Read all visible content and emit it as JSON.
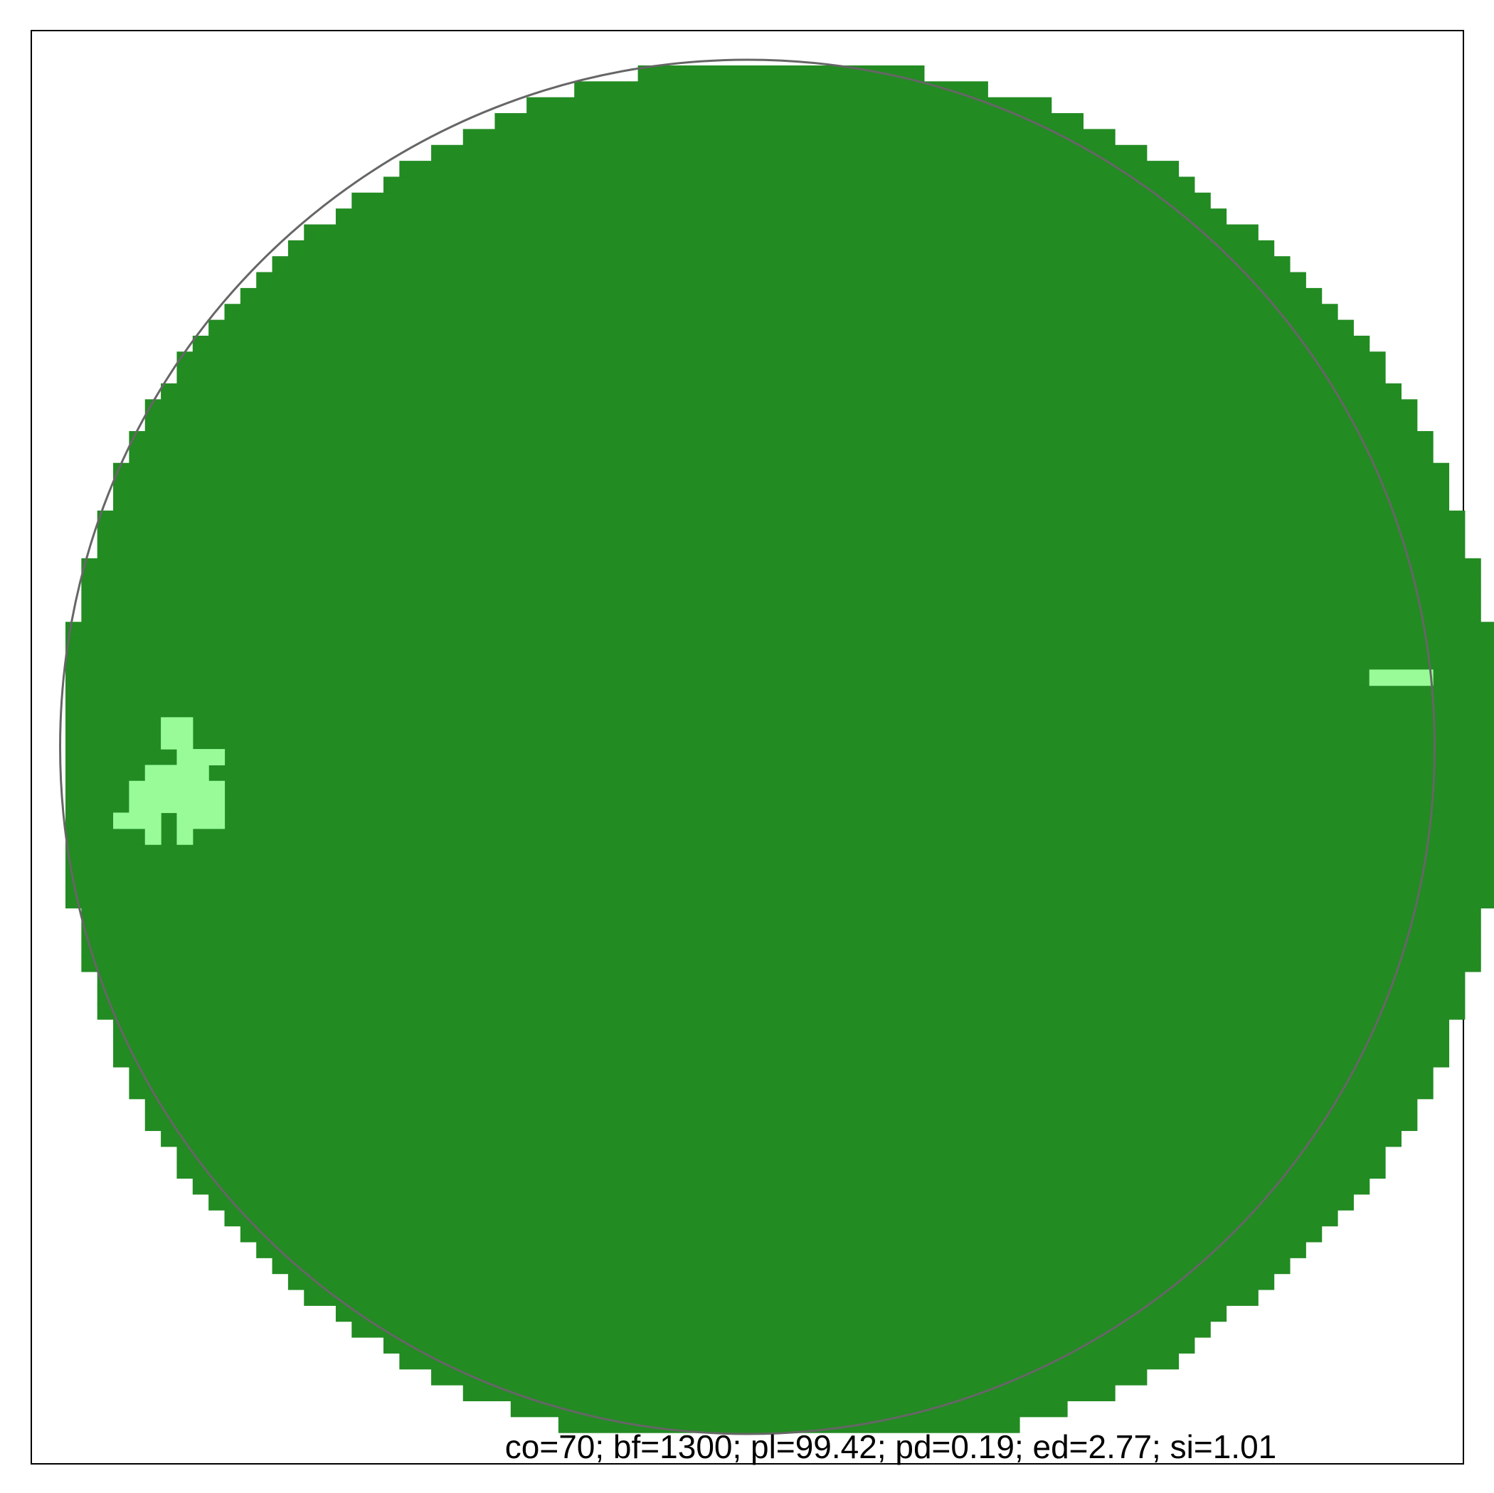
{
  "colors": {
    "background": "#ffffff",
    "frame": "#000000",
    "circle_outline": "#666666",
    "forest": "#228b22",
    "clearing": "#98fb98"
  },
  "chart_data": {
    "type": "heatmap",
    "title": "",
    "xlabel": "",
    "ylabel": "",
    "grid": false,
    "legend": "none",
    "caption": "co=70; bf=1300; pl=99.42; pd=0.19; ed=2.77; si=1.01",
    "metrics": {
      "co": 70,
      "bf": 1300,
      "pl": 99.42,
      "pd": 0.19,
      "ed": 2.77,
      "si": 1.01
    },
    "grid_size": 86,
    "classes": [
      {
        "value": 1,
        "color": "#228b22"
      },
      {
        "value": 0,
        "color": "#98fb98"
      }
    ],
    "row_spans": [
      [
        0,
        36,
        53
      ],
      [
        1,
        32,
        57
      ],
      [
        2,
        29,
        61
      ],
      [
        3,
        27,
        63
      ],
      [
        4,
        25,
        65
      ],
      [
        5,
        23,
        67
      ],
      [
        6,
        21,
        69
      ],
      [
        7,
        20,
        70
      ],
      [
        8,
        18,
        71
      ],
      [
        9,
        17,
        72
      ],
      [
        10,
        15,
        74
      ],
      [
        11,
        14,
        75
      ],
      [
        12,
        13,
        76
      ],
      [
        13,
        12,
        77
      ],
      [
        14,
        11,
        78
      ],
      [
        15,
        10,
        79
      ],
      [
        16,
        9,
        80
      ],
      [
        17,
        8,
        81
      ],
      [
        18,
        7,
        82
      ],
      [
        19,
        7,
        82
      ],
      [
        20,
        6,
        83
      ],
      [
        21,
        5,
        84
      ],
      [
        22,
        5,
        84
      ],
      [
        23,
        4,
        85
      ],
      [
        24,
        4,
        85
      ],
      [
        25,
        3,
        86
      ],
      [
        26,
        3,
        86
      ],
      [
        27,
        3,
        86
      ],
      [
        28,
        2,
        87
      ],
      [
        29,
        2,
        87
      ],
      [
        30,
        2,
        87
      ],
      [
        31,
        1,
        88
      ],
      [
        32,
        1,
        88
      ],
      [
        33,
        1,
        88
      ],
      [
        34,
        1,
        88
      ],
      [
        35,
        0,
        89
      ],
      [
        36,
        0,
        89
      ],
      [
        37,
        0,
        89
      ],
      [
        38,
        0,
        89
      ],
      [
        39,
        0,
        89
      ],
      [
        40,
        0,
        89
      ],
      [
        41,
        0,
        89
      ],
      [
        42,
        0,
        89
      ],
      [
        43,
        0,
        89
      ],
      [
        44,
        0,
        89
      ],
      [
        45,
        0,
        89
      ],
      [
        46,
        0,
        89
      ],
      [
        47,
        0,
        89
      ],
      [
        48,
        0,
        89
      ],
      [
        49,
        0,
        89
      ],
      [
        50,
        0,
        89
      ],
      [
        51,
        0,
        89
      ],
      [
        52,
        0,
        89
      ],
      [
        53,
        1,
        88
      ],
      [
        54,
        1,
        88
      ],
      [
        55,
        1,
        88
      ],
      [
        56,
        1,
        88
      ],
      [
        57,
        2,
        87
      ],
      [
        58,
        2,
        87
      ],
      [
        59,
        2,
        87
      ],
      [
        60,
        3,
        86
      ],
      [
        61,
        3,
        86
      ],
      [
        62,
        3,
        86
      ],
      [
        63,
        4,
        85
      ],
      [
        64,
        4,
        85
      ],
      [
        65,
        5,
        84
      ],
      [
        66,
        5,
        84
      ],
      [
        67,
        6,
        83
      ],
      [
        68,
        7,
        82
      ],
      [
        69,
        7,
        82
      ],
      [
        70,
        8,
        81
      ],
      [
        71,
        9,
        80
      ],
      [
        72,
        10,
        79
      ],
      [
        73,
        11,
        78
      ],
      [
        74,
        12,
        77
      ],
      [
        75,
        13,
        76
      ],
      [
        76,
        14,
        75
      ],
      [
        77,
        15,
        74
      ],
      [
        78,
        17,
        72
      ],
      [
        79,
        18,
        71
      ],
      [
        80,
        20,
        70
      ],
      [
        81,
        21,
        69
      ],
      [
        82,
        23,
        67
      ],
      [
        83,
        25,
        65
      ],
      [
        84,
        28,
        62
      ],
      [
        85,
        31,
        59
      ]
    ],
    "clearing_cells": [
      [
        38,
        82,
        85
      ],
      [
        41,
        6,
        7
      ],
      [
        42,
        6,
        7
      ],
      [
        43,
        7,
        9
      ],
      [
        44,
        5,
        8
      ],
      [
        45,
        4,
        9
      ],
      [
        46,
        4,
        9
      ],
      [
        47,
        3,
        5
      ],
      [
        47,
        7,
        9
      ],
      [
        48,
        5,
        5
      ],
      [
        48,
        7,
        7
      ]
    ]
  }
}
